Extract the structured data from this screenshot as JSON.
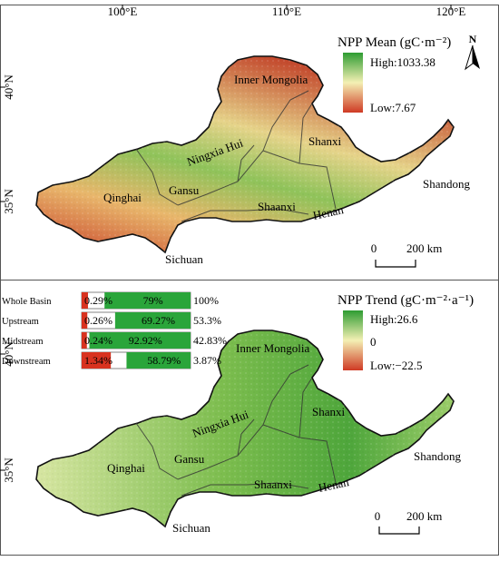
{
  "axes": {
    "lon_labels": [
      "100°E",
      "110°E",
      "120°E"
    ],
    "lat_labels": [
      "40°N",
      "35°N"
    ]
  },
  "north_arrow": {
    "letter": "N"
  },
  "panel_top": {
    "legend_title": "NPP Mean (gC·m⁻²)",
    "high_label": "High:1033.38",
    "low_label": "Low:7.67",
    "colors": {
      "high": "#2e9c32",
      "mid": "#f4f0b4",
      "low": "#cf3a24"
    },
    "scale_labels": [
      "0",
      "200 km"
    ],
    "regions": [
      "Inner Mongolia",
      "Ningxia Hui",
      "Shanxi",
      "Gansu",
      "Qinghai",
      "Shaanxi",
      "Henan",
      "Shandong",
      "Sichuan"
    ]
  },
  "panel_bottom": {
    "legend_title": "NPP Trend (gC·m⁻²·a⁻¹)",
    "high_label": "High:26.6",
    "mid_label": "0",
    "low_label": "Low:−22.5",
    "colors": {
      "high": "#2e9c32",
      "mid": "#f4f0b4",
      "low": "#cf3a24"
    },
    "scale_labels": [
      "0",
      "200 km"
    ],
    "regions": [
      "Inner Mongolia",
      "Ningxia Hui",
      "Shanxi",
      "Gansu",
      "Qinghai",
      "Shaanxi",
      "Henan",
      "Shandong",
      "Sichuan"
    ],
    "trend_table": [
      {
        "name": "Whole Basin",
        "neg_label": "0.29%",
        "pos_label": "79%",
        "sig_label": "100%",
        "pos_fraction": 0.79,
        "neg_fraction": 0.0029
      },
      {
        "name": "Upstream",
        "neg_label": "0.26%",
        "pos_label": "69.27%",
        "sig_label": "53.3%",
        "pos_fraction": 0.6927,
        "neg_fraction": 0.0026
      },
      {
        "name": "Midstream",
        "neg_label": "0.24%",
        "pos_label": "92.92%",
        "sig_label": "42.83%",
        "pos_fraction": 0.9292,
        "neg_fraction": 0.0024
      },
      {
        "name": "Downstream",
        "neg_label": "1.34%",
        "pos_label": "58.79%",
        "sig_label": "3.87%",
        "pos_fraction": 0.5879,
        "neg_fraction": 0.0134
      }
    ],
    "trend_colors": {
      "positive": "#2aa53a",
      "negative": "#d8321f"
    }
  }
}
